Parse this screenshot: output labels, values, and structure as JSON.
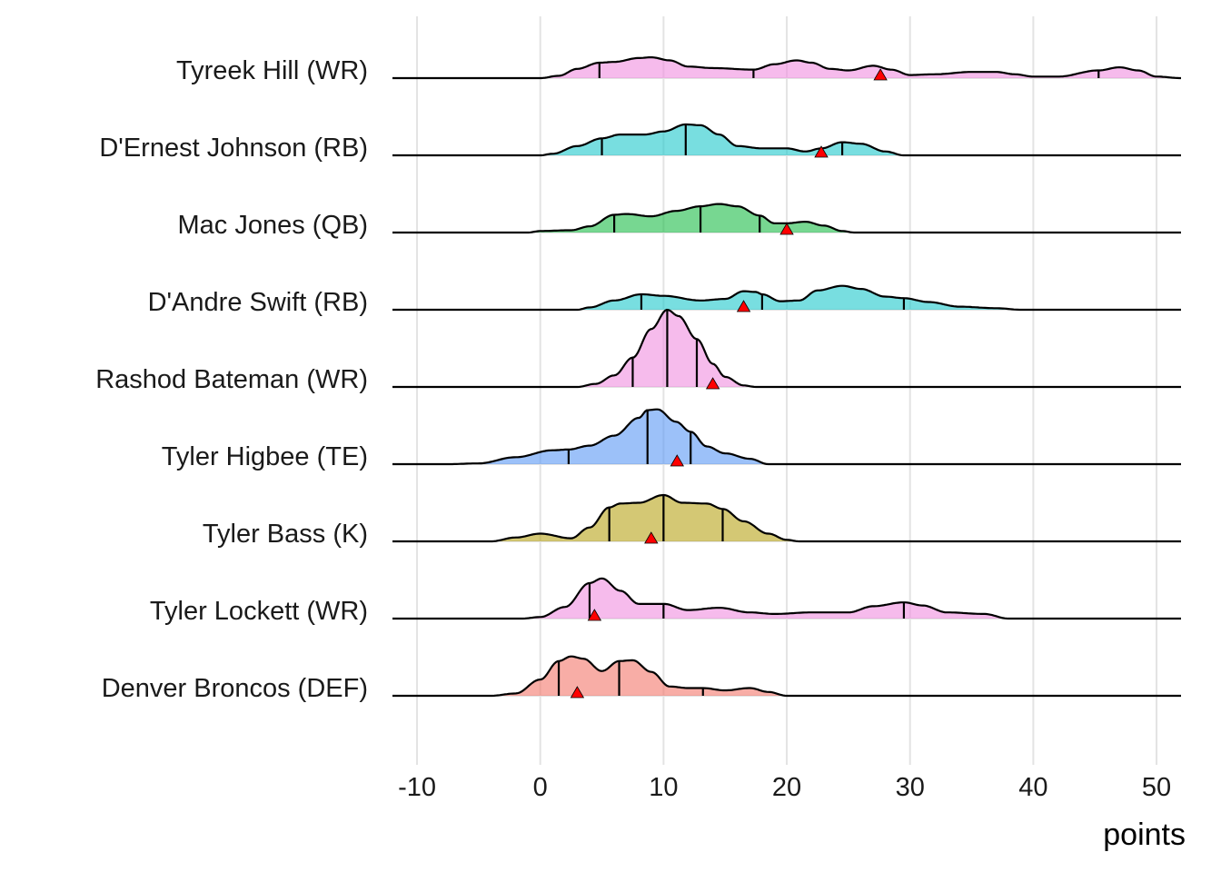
{
  "chart_data": {
    "type": "ridgeline",
    "title": "",
    "xlabel": "points",
    "ylabel": "",
    "xlim": [
      -12,
      52
    ],
    "x_ticks": [
      -10,
      0,
      10,
      20,
      30,
      40,
      50
    ],
    "x_tick_labels": [
      "-10",
      "0",
      "10",
      "20",
      "30",
      "40",
      "50"
    ],
    "grid": true,
    "legend": "none",
    "marker": {
      "shape": "triangle",
      "color": "#ff0000",
      "meaning": "projected points"
    },
    "series": [
      {
        "name": "Tyreek Hill (WR)",
        "color": "#f08ee0",
        "quantiles": [
          4.8,
          17.3,
          45.3
        ],
        "marker": 27.6,
        "density": [
          [
            -12,
            0
          ],
          [
            0,
            0
          ],
          [
            1.5,
            0.03
          ],
          [
            3,
            0.12
          ],
          [
            4.8,
            0.2
          ],
          [
            6,
            0.21
          ],
          [
            8,
            0.26
          ],
          [
            9,
            0.27
          ],
          [
            10.5,
            0.23
          ],
          [
            12,
            0.15
          ],
          [
            14,
            0.13
          ],
          [
            17.3,
            0.11
          ],
          [
            19,
            0.18
          ],
          [
            20.8,
            0.23
          ],
          [
            22,
            0.2
          ],
          [
            23.5,
            0.12
          ],
          [
            25,
            0.1
          ],
          [
            27,
            0.16
          ],
          [
            28.5,
            0.11
          ],
          [
            30,
            0.04
          ],
          [
            32,
            0.05
          ],
          [
            35,
            0.08
          ],
          [
            37,
            0.08
          ],
          [
            38.5,
            0.05
          ],
          [
            40,
            0.02
          ],
          [
            42,
            0.02
          ],
          [
            45.3,
            0.1
          ],
          [
            47,
            0.14
          ],
          [
            48.5,
            0.1
          ],
          [
            50,
            0.02
          ],
          [
            52,
            0.0
          ]
        ]
      },
      {
        "name": "D'Ernest Johnson (RB)",
        "color": "#1ec8cc",
        "quantiles": [
          5.0,
          11.8,
          24.5
        ],
        "marker": 22.8,
        "density": [
          [
            -12,
            0
          ],
          [
            0,
            0
          ],
          [
            1,
            0.02
          ],
          [
            3,
            0.12
          ],
          [
            5.0,
            0.22
          ],
          [
            6.5,
            0.27
          ],
          [
            8.5,
            0.27
          ],
          [
            10,
            0.31
          ],
          [
            11.8,
            0.4
          ],
          [
            13,
            0.39
          ],
          [
            14.5,
            0.27
          ],
          [
            16,
            0.12
          ],
          [
            18,
            0.09
          ],
          [
            20,
            0.09
          ],
          [
            21.5,
            0.05
          ],
          [
            22.8,
            0.09
          ],
          [
            24.5,
            0.17
          ],
          [
            26,
            0.15
          ],
          [
            28,
            0.05
          ],
          [
            29.5,
            0.0
          ],
          [
            52,
            0
          ]
        ]
      },
      {
        "name": "Mac Jones (QB)",
        "color": "#1dbd48",
        "quantiles": [
          6.0,
          13.0,
          17.8
        ],
        "marker": 20.0,
        "density": [
          [
            -12,
            0
          ],
          [
            -1,
            0
          ],
          [
            0,
            0.02
          ],
          [
            2.5,
            0.03
          ],
          [
            4,
            0.08
          ],
          [
            6.0,
            0.23
          ],
          [
            7,
            0.24
          ],
          [
            9,
            0.21
          ],
          [
            11,
            0.28
          ],
          [
            13.0,
            0.34
          ],
          [
            14.5,
            0.37
          ],
          [
            16,
            0.34
          ],
          [
            17.8,
            0.22
          ],
          [
            19,
            0.12
          ],
          [
            20.0,
            0.12
          ],
          [
            21.5,
            0.14
          ],
          [
            23,
            0.09
          ],
          [
            24.5,
            0.02
          ],
          [
            25.5,
            0.0
          ],
          [
            52,
            0
          ]
        ]
      },
      {
        "name": "D'Andre Swift (RB)",
        "color": "#1ec8cc",
        "quantiles": [
          8.2,
          18.0,
          29.5
        ],
        "marker": 16.5,
        "density": [
          [
            -12,
            0
          ],
          [
            3,
            0
          ],
          [
            4,
            0.03
          ],
          [
            6,
            0.12
          ],
          [
            8.2,
            0.2
          ],
          [
            10,
            0.18
          ],
          [
            13,
            0.12
          ],
          [
            15,
            0.14
          ],
          [
            16.5,
            0.24
          ],
          [
            17.5,
            0.23
          ],
          [
            18.0,
            0.2
          ],
          [
            19.5,
            0.11
          ],
          [
            21,
            0.12
          ],
          [
            22.5,
            0.25
          ],
          [
            24.5,
            0.31
          ],
          [
            26,
            0.27
          ],
          [
            28,
            0.17
          ],
          [
            29.5,
            0.15
          ],
          [
            31.5,
            0.1
          ],
          [
            34,
            0.04
          ],
          [
            37,
            0.02
          ],
          [
            39,
            0.0
          ],
          [
            52,
            0
          ]
        ]
      },
      {
        "name": "Rashod Bateman (WR)",
        "color": "#f08ee0",
        "quantiles": [
          7.5,
          10.3,
          12.7
        ],
        "marker": 14.0,
        "density": [
          [
            -12,
            0
          ],
          [
            3,
            0
          ],
          [
            4.5,
            0.04
          ],
          [
            6,
            0.15
          ],
          [
            7.5,
            0.38
          ],
          [
            9,
            0.75
          ],
          [
            10.3,
            1.0
          ],
          [
            11.2,
            0.92
          ],
          [
            12.7,
            0.62
          ],
          [
            14,
            0.3
          ],
          [
            15,
            0.13
          ],
          [
            16.5,
            0.02
          ],
          [
            17.5,
            0.0
          ],
          [
            52,
            0
          ]
        ]
      },
      {
        "name": "Tyler Higbee (TE)",
        "color": "#5a98f5",
        "quantiles": [
          2.3,
          8.7,
          12.2
        ],
        "marker": 11.1,
        "density": [
          [
            -12,
            0
          ],
          [
            -7.5,
            0
          ],
          [
            -5,
            0.01
          ],
          [
            -2,
            0.09
          ],
          [
            1,
            0.18
          ],
          [
            2.3,
            0.19
          ],
          [
            4,
            0.24
          ],
          [
            6,
            0.37
          ],
          [
            8.0,
            0.6
          ],
          [
            8.7,
            0.7
          ],
          [
            9.5,
            0.71
          ],
          [
            11,
            0.55
          ],
          [
            12.2,
            0.42
          ],
          [
            13.5,
            0.23
          ],
          [
            15,
            0.14
          ],
          [
            17,
            0.07
          ],
          [
            18.5,
            0.0
          ],
          [
            52,
            0
          ]
        ]
      },
      {
        "name": "Tyler Bass (K)",
        "color": "#b8a317",
        "quantiles": [
          5.6,
          10.0,
          14.8
        ],
        "marker": 9.0,
        "density": [
          [
            -12,
            0
          ],
          [
            -4,
            0
          ],
          [
            -2,
            0.05
          ],
          [
            0,
            0.1
          ],
          [
            2.5,
            0.04
          ],
          [
            4,
            0.18
          ],
          [
            5.6,
            0.44
          ],
          [
            6.5,
            0.49
          ],
          [
            8,
            0.5
          ],
          [
            10.0,
            0.6
          ],
          [
            11.5,
            0.5
          ],
          [
            13.5,
            0.49
          ],
          [
            14.8,
            0.42
          ],
          [
            16.5,
            0.26
          ],
          [
            18.5,
            0.1
          ],
          [
            20,
            0.02
          ],
          [
            21,
            0.0
          ],
          [
            52,
            0
          ]
        ]
      },
      {
        "name": "Tyler Lockett (WR)",
        "color": "#f08ee0",
        "quantiles": [
          4.0,
          10.0,
          29.5
        ],
        "marker": 4.4,
        "density": [
          [
            -12,
            0
          ],
          [
            -1.5,
            0
          ],
          [
            0,
            0.02
          ],
          [
            2,
            0.15
          ],
          [
            4.0,
            0.46
          ],
          [
            5,
            0.52
          ],
          [
            6.5,
            0.36
          ],
          [
            8,
            0.19
          ],
          [
            10.0,
            0.19
          ],
          [
            12,
            0.11
          ],
          [
            14.5,
            0.14
          ],
          [
            17,
            0.08
          ],
          [
            19,
            0.06
          ],
          [
            22,
            0.08
          ],
          [
            25,
            0.08
          ],
          [
            27,
            0.16
          ],
          [
            29.5,
            0.21
          ],
          [
            31,
            0.17
          ],
          [
            33,
            0.08
          ],
          [
            36,
            0.06
          ],
          [
            38,
            0.0
          ],
          [
            52,
            0
          ]
        ]
      },
      {
        "name": "Denver Broncos (DEF)",
        "color": "#f4766b",
        "quantiles": [
          1.5,
          6.4,
          13.2
        ],
        "marker": 3.0,
        "density": [
          [
            -12,
            0
          ],
          [
            -4,
            0
          ],
          [
            -2,
            0.03
          ],
          [
            0,
            0.21
          ],
          [
            1.5,
            0.45
          ],
          [
            2.5,
            0.51
          ],
          [
            3.5,
            0.48
          ],
          [
            5,
            0.32
          ],
          [
            6.4,
            0.45
          ],
          [
            7.5,
            0.46
          ],
          [
            9,
            0.31
          ],
          [
            10.5,
            0.12
          ],
          [
            12,
            0.1
          ],
          [
            13.2,
            0.1
          ],
          [
            15,
            0.07
          ],
          [
            17,
            0.1
          ],
          [
            18.5,
            0.05
          ],
          [
            20,
            0.0
          ],
          [
            52,
            0
          ]
        ]
      }
    ]
  }
}
